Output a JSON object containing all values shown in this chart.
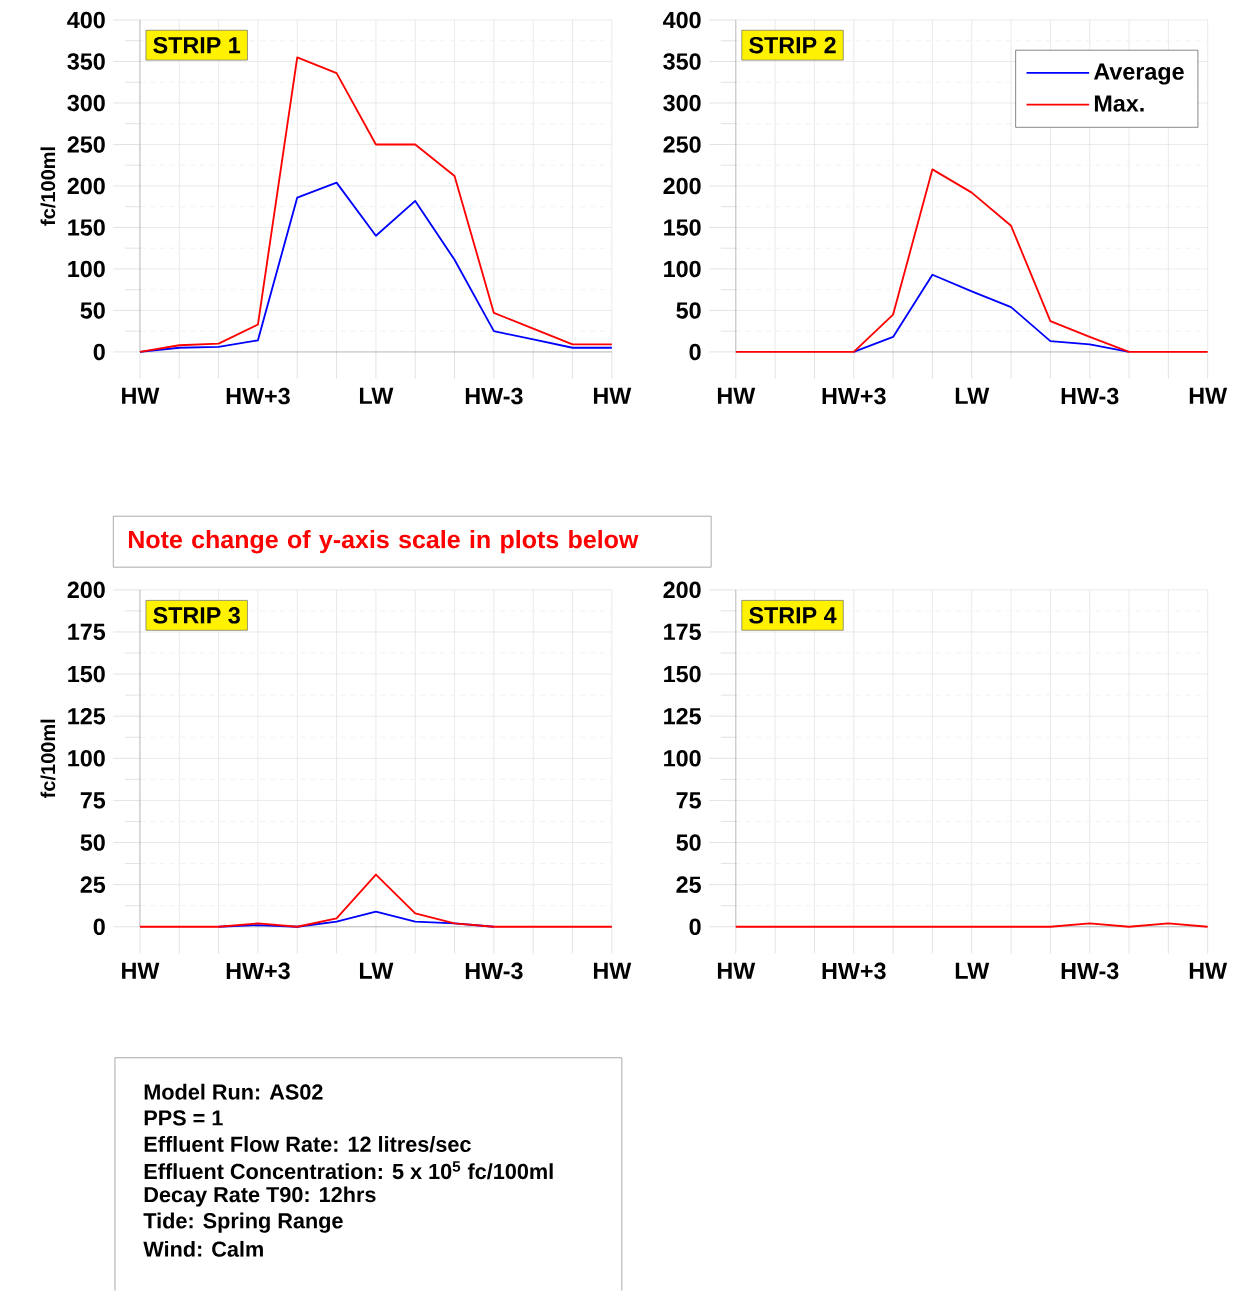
{
  "chart_data": [
    {
      "type": "line",
      "title": "STRIP 1",
      "ylabel": "fc/100ml",
      "categories": [
        "HW",
        null,
        null,
        "HW+3",
        null,
        null,
        "LW",
        null,
        null,
        "HW-3",
        null,
        null,
        "HW"
      ],
      "ylim": [
        0,
        400
      ],
      "yticks": [
        0,
        50,
        100,
        150,
        200,
        250,
        300,
        350,
        400
      ],
      "grid": true,
      "series": [
        {
          "color": "#0000ff",
          "values": [
            0,
            5,
            6,
            14,
            186,
            204,
            140,
            182,
            111,
            25,
            15,
            5,
            5
          ]
        },
        {
          "color": "#ff0000",
          "values": [
            0,
            8,
            10,
            33,
            355,
            336,
            250,
            250,
            212,
            47,
            28,
            9,
            9
          ]
        }
      ]
    },
    {
      "type": "line",
      "title": "STRIP 2",
      "categories": [
        "HW",
        null,
        null,
        "HW+3",
        null,
        null,
        "LW",
        null,
        null,
        "HW-3",
        null,
        null,
        "HW"
      ],
      "ylim": [
        0,
        400
      ],
      "yticks": [
        0,
        50,
        100,
        150,
        200,
        250,
        300,
        350,
        400
      ],
      "grid": true,
      "legend": "top right",
      "series": [
        {
          "name": "Average",
          "color": "#0000ff",
          "values": [
            null,
            null,
            null,
            0,
            18,
            93,
            73,
            54,
            13,
            9,
            0,
            null,
            null
          ]
        },
        {
          "name": "Max.",
          "color": "#ff0000",
          "values": [
            0,
            0,
            0,
            0,
            45,
            220,
            192,
            152,
            37,
            18,
            0,
            0,
            0
          ]
        }
      ]
    },
    {
      "type": "line",
      "title": "STRIP 3",
      "ylabel": "fc/100ml",
      "categories": [
        "HW",
        null,
        null,
        "HW+3",
        null,
        null,
        "LW",
        null,
        null,
        "HW-3",
        null,
        null,
        "HW"
      ],
      "ylim": [
        0,
        200
      ],
      "yticks": [
        0,
        25,
        50,
        75,
        100,
        125,
        150,
        175,
        200
      ],
      "grid": true,
      "series": [
        {
          "color": "#0000ff",
          "values": [
            null,
            null,
            0,
            1,
            0,
            3,
            9,
            3,
            2,
            0,
            null,
            null,
            null
          ]
        },
        {
          "color": "#ff0000",
          "values": [
            0,
            0,
            0,
            2,
            0,
            5,
            31,
            8,
            2,
            0,
            0,
            0,
            0
          ]
        }
      ],
      "annotations": [
        "Note change of y-axis scale in plots below",
        "Model Run: AS02",
        "PPS = 1",
        "Effluent Flow Rate: 12 litres/sec",
        "Effluent Concentration: 5 x 10$^{5}$ fc/100ml",
        "Decay Rate T90: 12hrs",
        "Tide: Spring Range",
        "Wind: Calm"
      ]
    },
    {
      "type": "line",
      "title": "STRIP 4",
      "categories": [
        "HW",
        null,
        null,
        "HW+3",
        null,
        null,
        "LW",
        null,
        null,
        "HW-3",
        null,
        null,
        "HW"
      ],
      "ylim": [
        0,
        200
      ],
      "yticks": [
        0,
        25,
        50,
        75,
        100,
        125,
        150,
        175,
        200
      ],
      "grid": true,
      "series": [
        {
          "color": "#ff0000",
          "values": [
            0,
            0,
            0,
            0,
            0,
            0,
            0,
            0,
            0,
            2,
            0,
            2,
            0
          ]
        }
      ]
    }
  ]
}
